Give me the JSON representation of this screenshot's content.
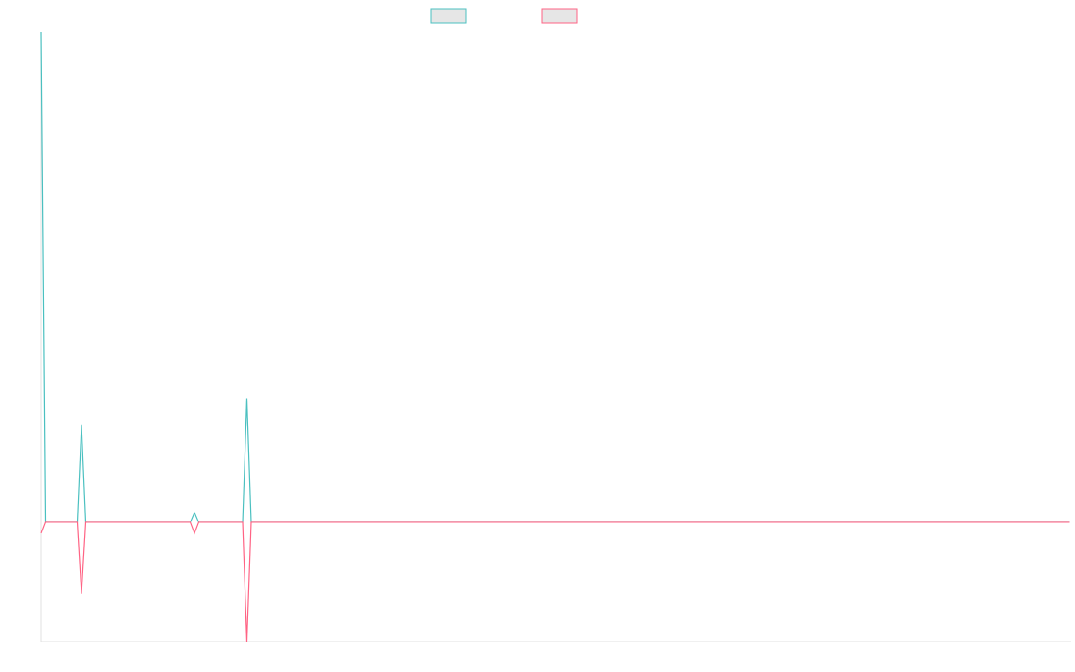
{
  "chart_data": {
    "type": "line",
    "x": [
      0,
      1,
      9,
      10,
      11,
      37,
      38,
      39,
      50,
      51,
      52,
      255
    ],
    "series": [
      {
        "color": "#4bc0c0",
        "values": [
          4.11,
          0,
          0,
          0.82,
          0,
          0,
          0.08,
          0,
          0,
          1.04,
          0,
          0
        ]
      },
      {
        "color": "#ff6384",
        "values": [
          -0.09,
          0,
          0,
          -0.6,
          0,
          0,
          -0.09,
          0,
          0,
          -1,
          0,
          0
        ]
      }
    ],
    "xlim": [
      0,
      255
    ],
    "ylim": [
      -1,
      4.11
    ],
    "legend": "top"
  }
}
